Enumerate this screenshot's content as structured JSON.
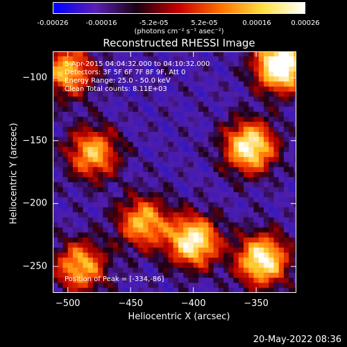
{
  "colorbar": {
    "ticks": [
      "-0.00026",
      "-0.00016",
      "-5.2e-05",
      "5.2e-05",
      "0.00016",
      "0.00026"
    ],
    "tick_values": [
      -0.00026,
      -0.00016,
      -5.2e-05,
      5.2e-05,
      0.00016,
      0.00026
    ],
    "units_label": "(photons cm⁻² s⁻¹ asec⁻²)",
    "range": [
      -0.00026,
      0.00026
    ],
    "colors": [
      "#0000ff",
      "#5a1fb5",
      "#1a0010",
      "#c80000",
      "#ff7000",
      "#ffe040",
      "#ffffff"
    ]
  },
  "annotations": {
    "time": "5-Apr-2015 04:04:32.000 to 04:10:32.000",
    "detectors": "Detectors: 3F 5F 6F 7F 8F 9F, Att 0",
    "energy": "Energy Range: 25.0 - 50.0 keV",
    "clean": "Clean     Total counts: 8.11E+03",
    "peak": "Position of Peak = [-334,-86]"
  },
  "datestamp": "20-May-2022 08:36",
  "chart_data": {
    "type": "heatmap",
    "title": "Reconstructed RHESSI Image",
    "xlabel": "Heliocentric X (arcsec)",
    "ylabel": "Heliocentric Y (arcsec)",
    "xlim": [
      -512,
      -318
    ],
    "ylim": [
      -271,
      -79
    ],
    "x_ticks": [
      -500,
      -450,
      -400,
      -350
    ],
    "y_ticks": [
      -100,
      -150,
      -200,
      -250
    ],
    "x_tick_labels": [
      "−500",
      "−450",
      "−400",
      "−350"
    ],
    "y_tick_labels": [
      "−100",
      "−150",
      "−200",
      "−250"
    ],
    "peak": {
      "x": -334,
      "y": -86
    },
    "bright_regions": [
      {
        "x": -330,
        "y": -90,
        "level": "max"
      },
      {
        "x": -355,
        "y": -155,
        "level": "high"
      },
      {
        "x": -400,
        "y": -230,
        "level": "high"
      },
      {
        "x": -345,
        "y": -245,
        "level": "high"
      },
      {
        "x": -500,
        "y": -95,
        "level": "medium"
      },
      {
        "x": -480,
        "y": -160,
        "level": "medium"
      },
      {
        "x": -440,
        "y": -215,
        "level": "medium"
      },
      {
        "x": -490,
        "y": -250,
        "level": "medium"
      }
    ]
  }
}
